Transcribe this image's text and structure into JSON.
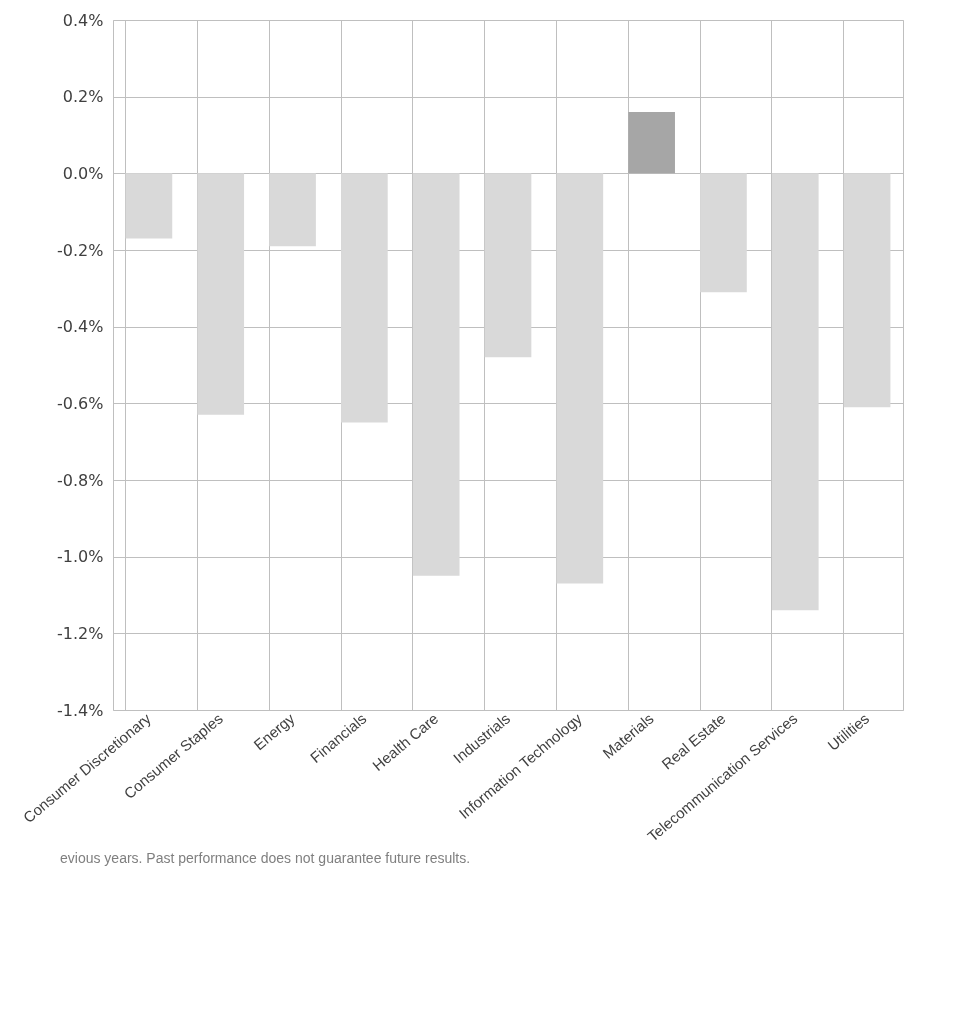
{
  "chart_data": {
    "type": "bar",
    "categories": [
      "Consumer Discretionary",
      "Consumer Staples",
      "Energy",
      "Financials",
      "Health Care",
      "Industrials",
      "Information Technology",
      "Materials",
      "Real Estate",
      "Telecommunication Services",
      "Utilities"
    ],
    "values": [
      -0.17,
      -0.63,
      -0.19,
      -0.65,
      -1.05,
      -0.48,
      -1.07,
      0.16,
      -0.31,
      -1.14,
      -0.61
    ],
    "colors": [
      "#d9d9d9",
      "#d9d9d9",
      "#d9d9d9",
      "#d9d9d9",
      "#d9d9d9",
      "#d9d9d9",
      "#d9d9d9",
      "#a6a6a6",
      "#d9d9d9",
      "#d9d9d9",
      "#d9d9d9"
    ],
    "ylim": [
      -1.4,
      0.4
    ],
    "yticks": [
      {
        "value": -1.4,
        "label": "-1.4%"
      },
      {
        "value": -1.2,
        "label": "-1.2%"
      },
      {
        "value": -1.0,
        "label": "-1.0%"
      },
      {
        "value": -0.8,
        "label": "-0.8%"
      },
      {
        "value": -0.6,
        "label": "-0.6%"
      },
      {
        "value": -0.4,
        "label": "-0.4%"
      },
      {
        "value": -0.2,
        "label": "-0.2%"
      },
      {
        "value": 0.0,
        "label": "0.0%"
      },
      {
        "value": 0.2,
        "label": "0.2%"
      },
      {
        "value": 0.4,
        "label": "0.4%"
      }
    ],
    "grid": true,
    "annotations": [
      "evious years. Past performance does not guarantee future results."
    ]
  }
}
